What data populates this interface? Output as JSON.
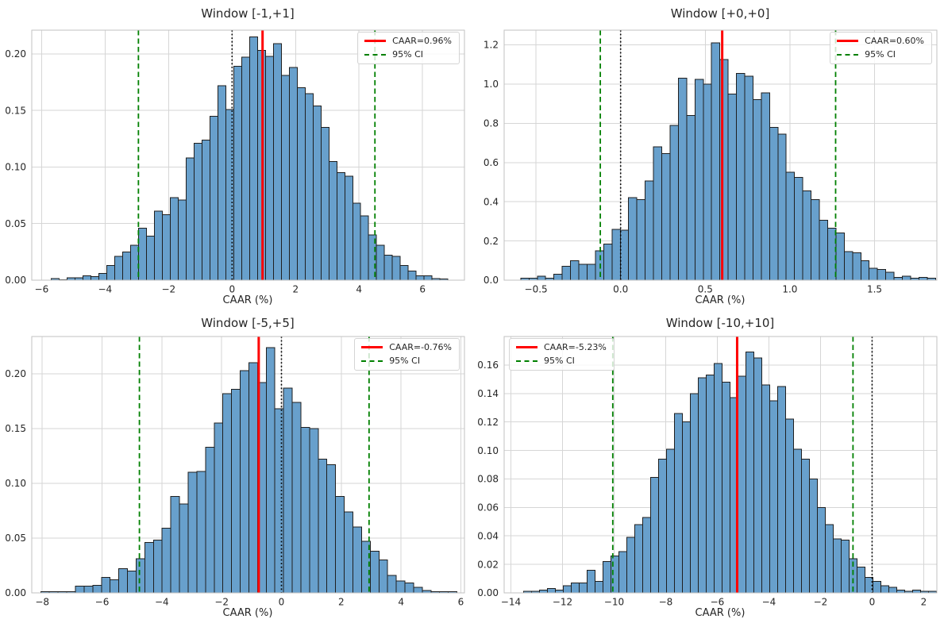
{
  "figure": {
    "background": "#ffffff"
  },
  "style": {
    "bar_fill": "#68a0cc",
    "bar_edge": "#1f1f1f",
    "caar_line_color": "#ff0000",
    "ci_line_color": "#008000",
    "zero_line_color": "#000000",
    "grid_color": "#d6d6d6",
    "spine_color": "#c2c2c2",
    "text_color": "#262626"
  },
  "chart_data": [
    {
      "type": "histogram",
      "title": "Window [-1,+1]",
      "xlabel": "CAAR (%)",
      "legend": {
        "caar": "CAAR=0.96%",
        "ci": "95% CI",
        "position": "top-right"
      },
      "caar_pct": 0.96,
      "ci_pct": [
        -2.95,
        4.5
      ],
      "zero_line": 0,
      "xlim": [
        -6.31,
        7.32
      ],
      "ylim": [
        0,
        0.221
      ],
      "xticks": [
        -6,
        -4,
        -2,
        0,
        2,
        4,
        6
      ],
      "xtick_labels": [
        "−6",
        "−4",
        "−2",
        "0",
        "2",
        "4",
        "6"
      ],
      "yticks": [
        0,
        0.05,
        0.1,
        0.15,
        0.2
      ],
      "ytick_labels": [
        "0.00",
        "0.05",
        "0.10",
        "0.15",
        "0.20"
      ],
      "bins": {
        "start": -5.7,
        "width": 0.25
      },
      "density": [
        0.0015,
        0.0005,
        0.002,
        0.002,
        0.004,
        0.003,
        0.006,
        0.013,
        0.021,
        0.025,
        0.031,
        0.046,
        0.039,
        0.061,
        0.058,
        0.073,
        0.071,
        0.108,
        0.121,
        0.124,
        0.145,
        0.172,
        0.151,
        0.189,
        0.197,
        0.215,
        0.203,
        0.198,
        0.209,
        0.181,
        0.188,
        0.17,
        0.165,
        0.154,
        0.135,
        0.105,
        0.095,
        0.092,
        0.068,
        0.057,
        0.04,
        0.031,
        0.022,
        0.021,
        0.013,
        0.008,
        0.004,
        0.004,
        0.0015,
        0.001
      ],
      "grid": true
    },
    {
      "type": "histogram",
      "title": "Window [+0,+0]",
      "xlabel": "CAAR (%)",
      "legend": {
        "caar": "CAAR=0.60%",
        "ci": "95% CI",
        "position": "top-right"
      },
      "caar_pct": 0.6,
      "ci_pct": [
        -0.12,
        1.27
      ],
      "zero_line": 0,
      "xlim": [
        -0.688,
        1.868
      ],
      "ylim": [
        0,
        1.275
      ],
      "xticks": [
        -0.5,
        0,
        0.5,
        1,
        1.5
      ],
      "xtick_labels": [
        "−0.5",
        "0.0",
        "0.5",
        "1.0",
        "1.5"
      ],
      "yticks": [
        0,
        0.2,
        0.4,
        0.6,
        0.8,
        1.0,
        1.2
      ],
      "ytick_labels": [
        "0.0",
        "0.2",
        "0.4",
        "0.6",
        "0.8",
        "1.0",
        "1.2"
      ],
      "bins": {
        "start": -0.59,
        "width": 0.049
      },
      "density": [
        0.01,
        0.01,
        0.02,
        0.01,
        0.03,
        0.07,
        0.1,
        0.08,
        0.08,
        0.15,
        0.185,
        0.26,
        0.255,
        0.42,
        0.41,
        0.505,
        0.68,
        0.645,
        0.79,
        1.03,
        0.84,
        1.025,
        1.0,
        1.21,
        1.125,
        0.95,
        1.055,
        1.04,
        0.92,
        0.955,
        0.78,
        0.745,
        0.55,
        0.525,
        0.455,
        0.41,
        0.305,
        0.265,
        0.24,
        0.145,
        0.14,
        0.1,
        0.06,
        0.055,
        0.04,
        0.015,
        0.02,
        0.01,
        0.015,
        0.01
      ],
      "grid": true
    },
    {
      "type": "histogram",
      "title": "Window [-5,+5]",
      "xlabel": "CAAR (%)",
      "legend": {
        "caar": "CAAR=-0.76%",
        "ci": "95% CI",
        "position": "top-right"
      },
      "caar_pct": -0.76,
      "ci_pct": [
        -4.75,
        2.93
      ],
      "zero_line": 0,
      "xlim": [
        -8.35,
        6.12
      ],
      "ylim": [
        0,
        0.234
      ],
      "xticks": [
        -8,
        -6,
        -4,
        -2,
        0,
        2,
        4,
        6
      ],
      "xtick_labels": [
        "−8",
        "−6",
        "−4",
        "−2",
        "0",
        "2",
        "4",
        "6"
      ],
      "yticks": [
        0,
        0.05,
        0.1,
        0.15,
        0.2
      ],
      "ytick_labels": [
        "0.00",
        "0.05",
        "0.10",
        "0.15",
        "0.20"
      ],
      "bins": {
        "start": -8.05,
        "width": 0.29
      },
      "density": [
        0.001,
        0.001,
        0.001,
        0.001,
        0.006,
        0.006,
        0.007,
        0.014,
        0.012,
        0.022,
        0.02,
        0.031,
        0.046,
        0.048,
        0.059,
        0.088,
        0.081,
        0.11,
        0.111,
        0.133,
        0.155,
        0.182,
        0.186,
        0.203,
        0.21,
        0.192,
        0.224,
        0.168,
        0.187,
        0.174,
        0.151,
        0.15,
        0.122,
        0.117,
        0.088,
        0.074,
        0.06,
        0.047,
        0.038,
        0.03,
        0.016,
        0.011,
        0.009,
        0.005,
        0.002,
        0.001,
        0.001,
        0.001
      ],
      "grid": true
    },
    {
      "type": "histogram",
      "title": "Window [-10,+10]",
      "xlabel": "CAAR (%)",
      "legend": {
        "caar": "CAAR=-5.23%",
        "ci": "95% CI",
        "position": "top-left"
      },
      "caar_pct": -5.23,
      "ci_pct": [
        -10.05,
        -0.74
      ],
      "zero_line": 0,
      "xlim": [
        -14.26,
        2.51
      ],
      "ylim": [
        0,
        0.18
      ],
      "xticks": [
        -14,
        -12,
        -10,
        -8,
        -6,
        -4,
        -2,
        0,
        2
      ],
      "xtick_labels": [
        "−14",
        "−12",
        "−10",
        "−8",
        "−6",
        "−4",
        "−2",
        "0",
        "2"
      ],
      "yticks": [
        0,
        0.02,
        0.04,
        0.06,
        0.08,
        0.1,
        0.12,
        0.14,
        0.16
      ],
      "ytick_labels": [
        "0.00",
        "0.02",
        "0.04",
        "0.06",
        "0.08",
        "0.10",
        "0.12",
        "0.14",
        "0.16"
      ],
      "bins": {
        "start": -13.5,
        "width": 0.3075
      },
      "density": [
        0.001,
        0.001,
        0.002,
        0.003,
        0.002,
        0.005,
        0.007,
        0.007,
        0.016,
        0.008,
        0.022,
        0.026,
        0.029,
        0.039,
        0.048,
        0.053,
        0.081,
        0.094,
        0.101,
        0.126,
        0.12,
        0.14,
        0.151,
        0.153,
        0.161,
        0.148,
        0.137,
        0.152,
        0.169,
        0.165,
        0.146,
        0.135,
        0.145,
        0.122,
        0.101,
        0.094,
        0.08,
        0.06,
        0.048,
        0.038,
        0.037,
        0.024,
        0.018,
        0.011,
        0.008,
        0.005,
        0.004,
        0.002,
        0.001,
        0.002,
        0.001,
        0.001
      ],
      "grid": true
    }
  ]
}
